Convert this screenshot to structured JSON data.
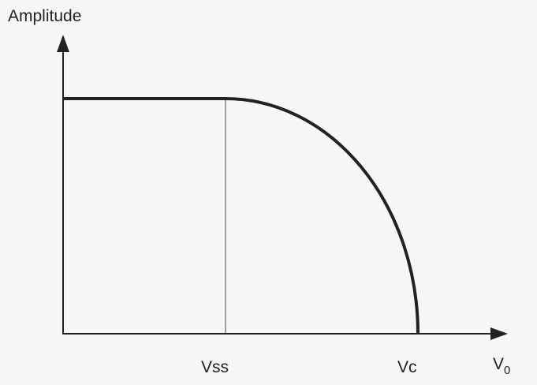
{
  "axes": {
    "y_label": "Amplitude",
    "x_label": "V",
    "x_label_subscript": "0"
  },
  "markers": {
    "vss": "Vss",
    "vc": "Vc"
  }
}
